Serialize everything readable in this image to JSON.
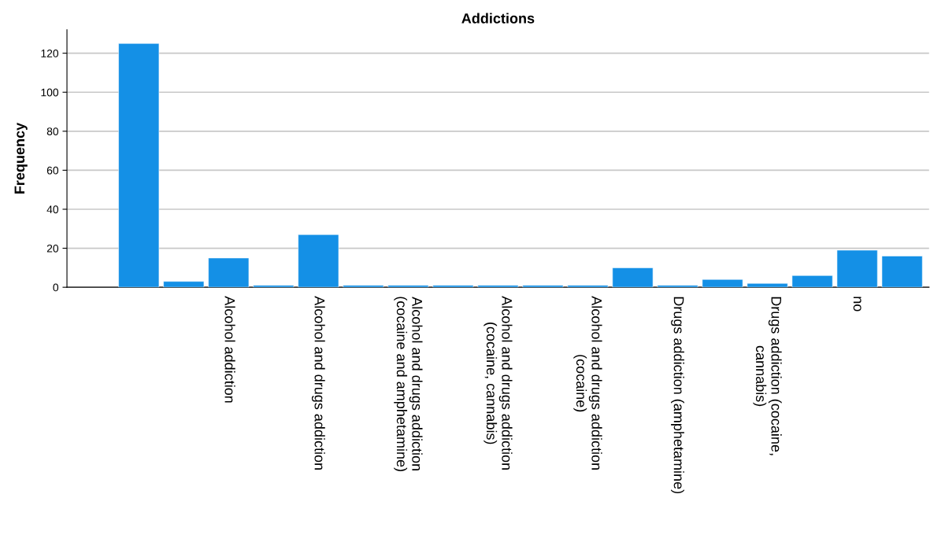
{
  "chart_data": {
    "type": "bar",
    "title": "Addictions",
    "ylabel": "Frequency",
    "categories": [
      null,
      null,
      "Alcohol addiction",
      null,
      "Alcohol and drugs addiction",
      null,
      "Alcohol and drugs addiction\n(cocaine and amphetamine)",
      null,
      "Alcohol and drugs addiction\n(cocaine, cannabis)",
      null,
      "Alcohol and drugs addiction\n(cocaine)",
      null,
      "Drugs addiction (amphetamine)",
      null,
      "Drugs addiction (cocaine,\ncannabis)",
      null,
      "no",
      null
    ],
    "values": [
      125,
      3,
      15,
      1,
      27,
      1,
      1,
      1,
      1,
      1,
      1,
      10,
      1,
      4,
      2,
      6,
      19,
      16
    ],
    "color": "#1490e6",
    "ylim": [
      0,
      132
    ],
    "yticks": [
      0,
      20,
      40,
      60,
      80,
      100,
      120
    ],
    "grid": "y"
  }
}
